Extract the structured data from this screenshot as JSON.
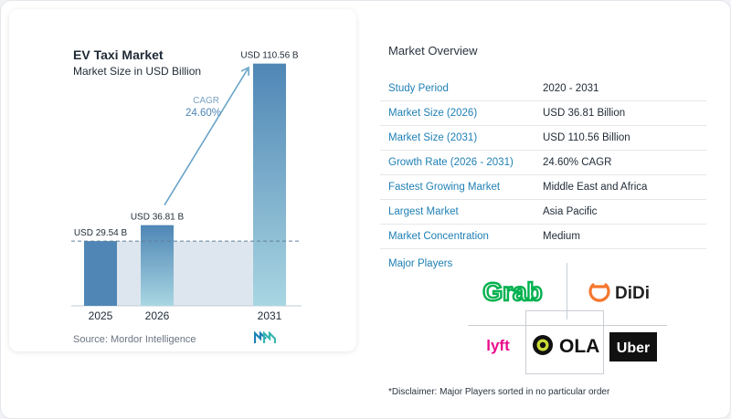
{
  "chart_data": {
    "type": "bar",
    "title": "EV Taxi Market",
    "subtitle": "Market Size in USD Billion",
    "categories": [
      "2025",
      "2026",
      "2031"
    ],
    "values": [
      29.54,
      36.81,
      110.56
    ],
    "value_labels": [
      "USD 29.54 B",
      "USD 36.81 B",
      "USD 110.56 B"
    ],
    "cagr_label": "CAGR",
    "cagr_value": "24.60%",
    "ylim": [
      0,
      120
    ],
    "colors": {
      "bar_light": "#a9d6e2",
      "bar_dark": "#4f86b5",
      "arrow": "#6aa4c8",
      "reference": "#dde6ee"
    }
  },
  "source": "Source: Mordor Intelligence",
  "overview": {
    "title": "Market Overview",
    "rows": [
      {
        "label": "Study Period",
        "value": "2020 - 2031"
      },
      {
        "label": "Market Size (2026)",
        "value": "USD 36.81 Billion"
      },
      {
        "label": "Market Size (2031)",
        "value": "USD 110.56 Billion"
      },
      {
        "label": "Growth Rate (2026 - 2031)",
        "value": "24.60% CAGR"
      },
      {
        "label": "Fastest Growing Market",
        "value": "Middle East and Africa"
      },
      {
        "label": "Largest Market",
        "value": "Asia Pacific"
      },
      {
        "label": "Market Concentration",
        "value": "Medium"
      }
    ]
  },
  "players": {
    "title": "Major Players",
    "names": [
      "Grab",
      "DiDi",
      "lyft",
      "OLA",
      "Uber"
    ]
  },
  "disclaimer": "*Disclaimer: Major Players sorted in no particular order"
}
